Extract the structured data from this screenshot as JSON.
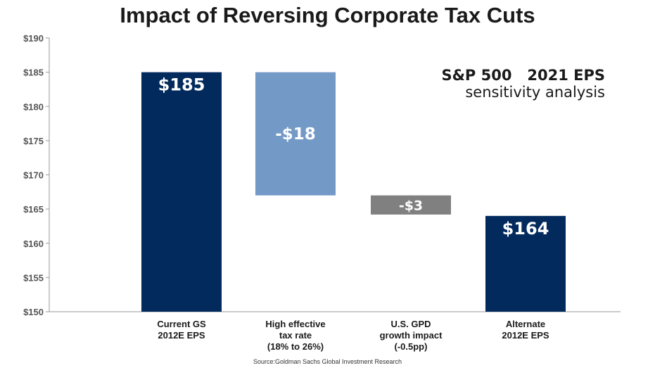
{
  "chart_data": {
    "type": "bar",
    "title": "Impact of Reversing Corporate Tax Cuts",
    "annotation": {
      "line1": "S&P 500   2021 EPS",
      "line2": "sensitivity analysis"
    },
    "source": "Source:Goldman Sachs Global Investment Research",
    "ylim": [
      150,
      190
    ],
    "yticks": [
      "$150",
      "$155",
      "$160",
      "$165",
      "$170",
      "$175",
      "$180",
      "$185",
      "$190"
    ],
    "ytick_values": [
      150,
      155,
      160,
      165,
      170,
      175,
      180,
      185,
      190
    ],
    "grid": false,
    "categories": [
      [
        "Current GS",
        "2012E EPS"
      ],
      [
        "High effective",
        "tax rate",
        "(18% to 26%)"
      ],
      [
        "U.S. GPD",
        "growth impact",
        "(-0.5pp)"
      ],
      [
        "Alternate",
        "2012E EPS"
      ]
    ],
    "bars": [
      {
        "bottom": 150,
        "top": 185,
        "label": "$185",
        "color": "#022a5c"
      },
      {
        "bottom": 167,
        "top": 185,
        "label": "-$18",
        "color": "#7399c6"
      },
      {
        "bottom": 164.2,
        "top": 167,
        "label": "-$3",
        "color": "#808080"
      },
      {
        "bottom": 150,
        "top": 164,
        "label": "$164",
        "color": "#022a5c"
      }
    ]
  }
}
